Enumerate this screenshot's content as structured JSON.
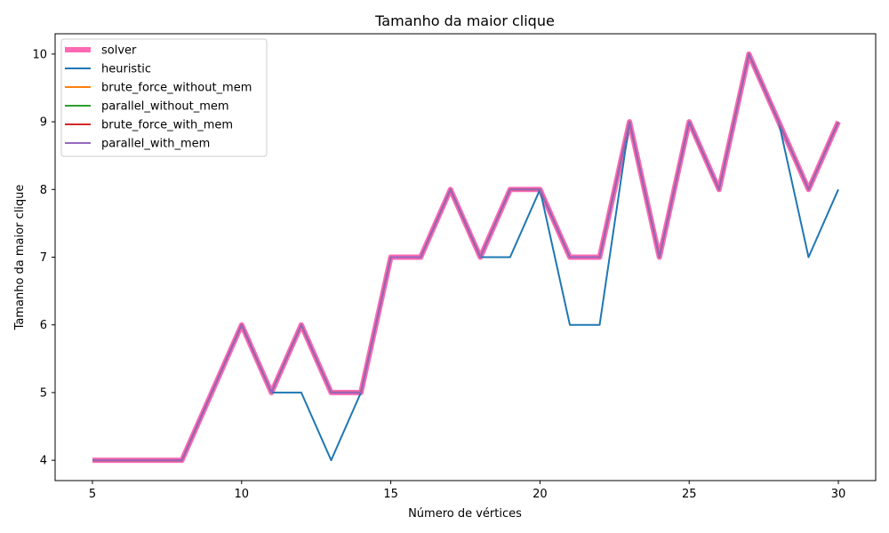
{
  "chart_data": {
    "type": "line",
    "title": "Tamanho da maior clique",
    "xlabel": "Número de vértices",
    "ylabel": "Tamanho da maior clique",
    "xlim": [
      3.75,
      31.25
    ],
    "ylim": [
      3.7,
      10.3
    ],
    "xticks": [
      5,
      10,
      15,
      20,
      25,
      30
    ],
    "yticks": [
      4,
      5,
      6,
      7,
      8,
      9,
      10
    ],
    "grid": false,
    "legend_position": "top-left",
    "x": [
      5,
      6,
      7,
      8,
      9,
      10,
      11,
      12,
      13,
      14,
      15,
      16,
      17,
      18,
      19,
      20,
      21,
      22,
      23,
      24,
      25,
      26,
      27,
      28,
      29,
      30
    ],
    "series": [
      {
        "name": "solver",
        "color": "#ff69b4",
        "values": [
          4,
          4,
          4,
          4,
          5,
          6,
          5,
          6,
          5,
          5,
          7,
          7,
          8,
          7,
          8,
          8,
          7,
          7,
          9,
          7,
          9,
          8,
          10,
          9,
          8,
          9
        ]
      },
      {
        "name": "heuristic",
        "color": "#1f77b4",
        "values": [
          4,
          4,
          4,
          4,
          5,
          6,
          5,
          5,
          4,
          5,
          7,
          7,
          8,
          7,
          7,
          8,
          6,
          6,
          9,
          7,
          9,
          8,
          10,
          9,
          7,
          8
        ]
      },
      {
        "name": "brute_force_without_mem",
        "color": "#ff7f0e",
        "values": [
          4,
          4,
          4,
          4,
          5,
          6,
          5,
          6,
          5,
          5,
          7,
          7,
          8,
          7,
          8,
          8,
          7,
          7,
          9,
          7,
          9,
          8,
          10,
          9,
          8,
          9
        ]
      },
      {
        "name": "parallel_without_mem",
        "color": "#2ca02c",
        "values": [
          4,
          4,
          4,
          4,
          5,
          6,
          5,
          6,
          5,
          5,
          7,
          7,
          8,
          7,
          8,
          8,
          7,
          7,
          9,
          7,
          9,
          8,
          10,
          9,
          8,
          9
        ]
      },
      {
        "name": "brute_force_with_mem",
        "color": "#d62728",
        "values": [
          4,
          4,
          4,
          4,
          5,
          6,
          5,
          6,
          5,
          5,
          7,
          7,
          8,
          7,
          8,
          8,
          7,
          7,
          9,
          7,
          9,
          8,
          10,
          9,
          8,
          9
        ]
      },
      {
        "name": "parallel_with_mem",
        "color": "#9467bd",
        "values": [
          4,
          4,
          4,
          4,
          5,
          6,
          5,
          6,
          5,
          5,
          7,
          7,
          8,
          7,
          8,
          8,
          7,
          7,
          9,
          7,
          9,
          8,
          10,
          9,
          8,
          9
        ]
      }
    ]
  }
}
